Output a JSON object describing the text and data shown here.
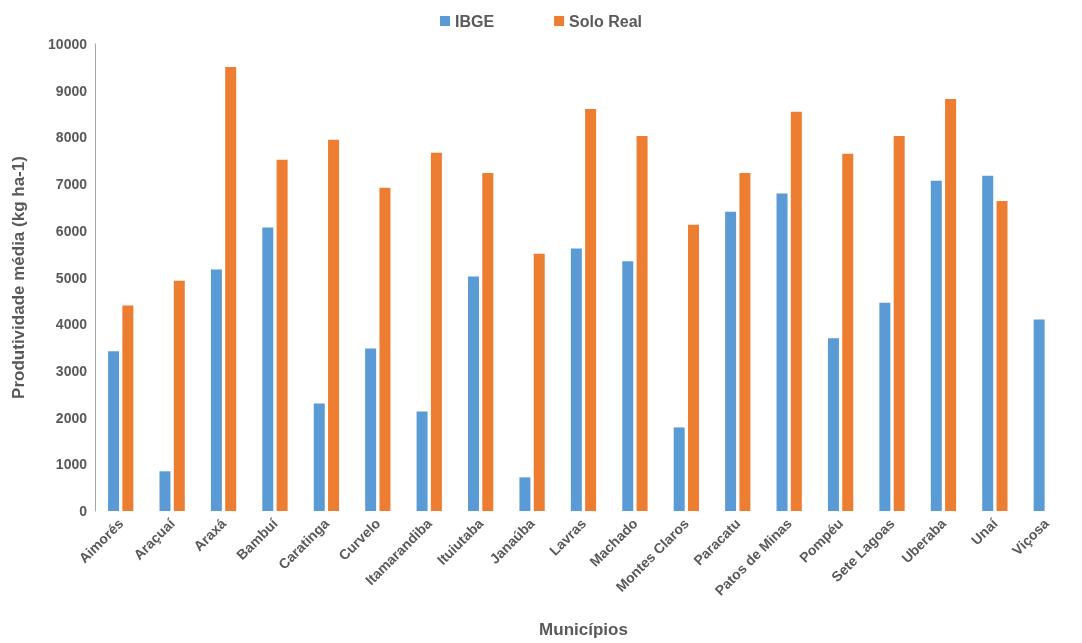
{
  "chart_data": {
    "type": "bar",
    "xlabel": "Municípios",
    "ylabel": "Produtividade média (kg ha-1)",
    "categories": [
      "Aimorés",
      "Araçuaí",
      "Araxá",
      "Bambuí",
      "Caratinga",
      "Curvelo",
      "Itamarandiba",
      "Ituiutaba",
      "Janaúba",
      "Lavras",
      "Machado",
      "Montes Claros",
      "Paracatu",
      "Patos de Minas",
      "Pompéu",
      "Sete Lagoas",
      "Uberaba",
      "Unaí",
      "Viçosa"
    ],
    "series": [
      {
        "name": "IBGE",
        "color": "#5b9bd5",
        "values": [
          3420,
          850,
          5170,
          6070,
          2300,
          3480,
          2130,
          5020,
          720,
          5620,
          5350,
          1790,
          6410,
          6800,
          3700,
          4460,
          7070,
          7180,
          4100
        ]
      },
      {
        "name": "Solo Real",
        "color": "#ed7d31",
        "values": [
          4400,
          4930,
          9510,
          7520,
          7950,
          6920,
          7670,
          7240,
          5510,
          8610,
          8030,
          6130,
          7240,
          8550,
          7650,
          8030,
          8820,
          6640,
          null
        ]
      }
    ],
    "ylim": [
      0,
      10000
    ],
    "yticks": [
      0,
      1000,
      2000,
      3000,
      4000,
      5000,
      6000,
      7000,
      8000,
      9000,
      10000
    ],
    "grid": false,
    "legend": "top"
  }
}
